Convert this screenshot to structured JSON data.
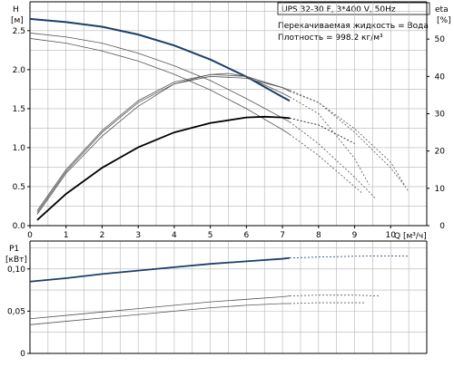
{
  "chart_data": [
    {
      "type": "line",
      "pump_title": "UPS 32-30 F, 3*400 V, 50Hz",
      "info_lines": [
        "Перекачиваемая жидкость = Вода",
        "Плотность = 998.2 кг/м³"
      ],
      "y_label_top": "H",
      "y_unit": "[м]",
      "y2_label": "eta",
      "y2_unit": "[%]",
      "x_label": "Q [м³/ч]",
      "xlim": [
        0,
        11
      ],
      "ylim": [
        0,
        2.87
      ],
      "y2lim": [
        0,
        60
      ],
      "x_ticks": [
        "0",
        "1",
        "2",
        "3",
        "4",
        "5",
        "6",
        "7",
        "8",
        "9",
        "10"
      ],
      "y_ticks": [
        "0.0",
        "0.5",
        "1.0",
        "1.5",
        "2.0",
        "2.5"
      ],
      "y2_ticks": [
        "0",
        "10",
        "20",
        "30",
        "40",
        "50"
      ],
      "grid": true,
      "colors": {
        "selected": "#1a3f6b",
        "other": "#555555",
        "eta_selected": "#000000",
        "grid": "#b5b5b5"
      },
      "series": [
        {
          "kind": "head",
          "role": "selected",
          "axis": "left",
          "points": [
            [
              0,
              2.65
            ],
            [
              1,
              2.61
            ],
            [
              2,
              2.55
            ],
            [
              3,
              2.45
            ],
            [
              4,
              2.31
            ],
            [
              5,
              2.13
            ],
            [
              6,
              1.91
            ],
            [
              7,
              1.65
            ],
            [
              7.2,
              1.6
            ]
          ],
          "dashed_points": []
        },
        {
          "kind": "head",
          "role": "other",
          "axis": "left",
          "points": [
            [
              0,
              2.47
            ],
            [
              1,
              2.42
            ],
            [
              2,
              2.34
            ],
            [
              3,
              2.21
            ],
            [
              4,
              2.05
            ],
            [
              5,
              1.86
            ],
            [
              6,
              1.63
            ],
            [
              7,
              1.38
            ],
            [
              7.2,
              1.33
            ]
          ],
          "dashed_points": [
            [
              7.2,
              1.33
            ],
            [
              8,
              1.05
            ],
            [
              9,
              0.62
            ],
            [
              9.6,
              0.34
            ]
          ]
        },
        {
          "kind": "head",
          "role": "other",
          "axis": "left",
          "points": [
            [
              0,
              2.4
            ],
            [
              1,
              2.34
            ],
            [
              2,
              2.24
            ],
            [
              3,
              2.11
            ],
            [
              4,
              1.94
            ],
            [
              5,
              1.74
            ],
            [
              6,
              1.5
            ],
            [
              7,
              1.23
            ],
            [
              7.2,
              1.17
            ]
          ],
          "dashed_points": [
            [
              7.2,
              1.17
            ],
            [
              8,
              0.9
            ],
            [
              9,
              0.5
            ],
            [
              9.2,
              0.42
            ]
          ]
        },
        {
          "kind": "eta",
          "role": "selected",
          "axis": "right",
          "points": [
            [
              0.2,
              1.5
            ],
            [
              1,
              8.5
            ],
            [
              2,
              15.5
            ],
            [
              3,
              21
            ],
            [
              4,
              25
            ],
            [
              5,
              27.5
            ],
            [
              6,
              29
            ],
            [
              6.5,
              29.2
            ],
            [
              7,
              29
            ],
            [
              7.2,
              28.8
            ]
          ],
          "dashed_points": [
            [
              7.2,
              28.8
            ],
            [
              8,
              27
            ],
            [
              9,
              22
            ]
          ]
        },
        {
          "kind": "eta",
          "role": "other",
          "axis": "right",
          "points": [
            [
              0.2,
              3
            ],
            [
              1,
              14
            ],
            [
              2,
              24
            ],
            [
              3,
              32
            ],
            [
              4,
              38
            ],
            [
              5,
              40.5
            ],
            [
              5.5,
              40.8
            ],
            [
              6,
              40
            ],
            [
              7,
              35.5
            ],
            [
              7.2,
              34.5
            ]
          ],
          "dashed_points": [
            [
              7.2,
              34.5
            ],
            [
              8,
              30
            ],
            [
              9,
              18
            ],
            [
              9.4,
              11
            ]
          ]
        },
        {
          "kind": "eta",
          "role": "other",
          "axis": "right",
          "points": [
            [
              0.2,
              4
            ],
            [
              1,
              15
            ],
            [
              2,
              25.5
            ],
            [
              3,
              33.5
            ],
            [
              4,
              38.5
            ],
            [
              5,
              40.5
            ],
            [
              6,
              40
            ],
            [
              7,
              37
            ],
            [
              7.2,
              36
            ]
          ],
          "dashed_points": [
            [
              7.2,
              36
            ],
            [
              8,
              33
            ],
            [
              9,
              26
            ],
            [
              10,
              17
            ],
            [
              10.5,
              9
            ]
          ]
        },
        {
          "kind": "eta",
          "role": "other",
          "axis": "right",
          "points": [
            [
              0.2,
              3.5
            ],
            [
              1,
              14.5
            ],
            [
              2,
              25
            ],
            [
              3,
              33
            ],
            [
              4,
              38
            ],
            [
              5,
              40
            ],
            [
              6,
              39.5
            ],
            [
              7,
              37
            ],
            [
              7.2,
              36.3
            ]
          ],
          "dashed_points": [
            [
              7.2,
              36.3
            ],
            [
              8,
              33
            ],
            [
              9,
              25
            ],
            [
              10,
              15.5
            ],
            [
              10.4,
              10.5
            ]
          ]
        }
      ]
    },
    {
      "type": "line",
      "y_label": "P1",
      "y_unit": "[кВт]",
      "xlim": [
        0,
        11
      ],
      "ylim": [
        0,
        0.133
      ],
      "y_ticks": [
        "0",
        "0,05",
        "0,10"
      ],
      "grid": true,
      "series": [
        {
          "kind": "power",
          "role": "selected",
          "points": [
            [
              0,
              0.085
            ],
            [
              1,
              0.089
            ],
            [
              2,
              0.094
            ],
            [
              3,
              0.098
            ],
            [
              4,
              0.102
            ],
            [
              5,
              0.106
            ],
            [
              6,
              0.109
            ],
            [
              7,
              0.112
            ],
            [
              7.2,
              0.113
            ]
          ],
          "dashed_points": [
            [
              7.2,
              0.113
            ],
            [
              8,
              0.114
            ],
            [
              9,
              0.115
            ],
            [
              10,
              0.1155
            ],
            [
              10.5,
              0.115
            ]
          ]
        },
        {
          "kind": "power",
          "role": "other",
          "points": [
            [
              0,
              0.041
            ],
            [
              1,
              0.045
            ],
            [
              2,
              0.049
            ],
            [
              3,
              0.053
            ],
            [
              4,
              0.057
            ],
            [
              5,
              0.061
            ],
            [
              6,
              0.064
            ],
            [
              7,
              0.067
            ],
            [
              7.2,
              0.068
            ]
          ],
          "dashed_points": [
            [
              7.2,
              0.068
            ],
            [
              8,
              0.069
            ],
            [
              9,
              0.069
            ],
            [
              9.7,
              0.068
            ]
          ]
        },
        {
          "kind": "power",
          "role": "other",
          "points": [
            [
              0,
              0.034
            ],
            [
              1,
              0.038
            ],
            [
              2,
              0.042
            ],
            [
              3,
              0.046
            ],
            [
              4,
              0.05
            ],
            [
              5,
              0.054
            ],
            [
              6,
              0.057
            ],
            [
              7,
              0.059
            ],
            [
              7.2,
              0.059
            ]
          ],
          "dashed_points": [
            [
              7.2,
              0.059
            ],
            [
              8,
              0.06
            ],
            [
              9,
              0.06
            ],
            [
              9.3,
              0.06
            ]
          ]
        }
      ]
    }
  ]
}
